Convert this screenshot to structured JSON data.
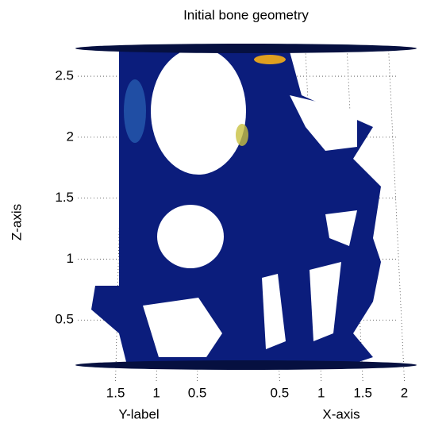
{
  "chart_data": {
    "type": "mesh3d",
    "title": "Initial bone geometry",
    "xlabel": "X-axis",
    "ylabel": "Y-label",
    "zlabel": "Z-axis",
    "xlim": [
      0,
      2.1
    ],
    "xticks": [
      0.5,
      1,
      1.5,
      2
    ],
    "ylim": [
      0,
      1.7
    ],
    "yticks": [
      1.5,
      1,
      0.5
    ],
    "zlim": [
      0,
      2.8
    ],
    "zticks": [
      0.5,
      1,
      1.5,
      2,
      2.5
    ],
    "grid": true
  }
}
